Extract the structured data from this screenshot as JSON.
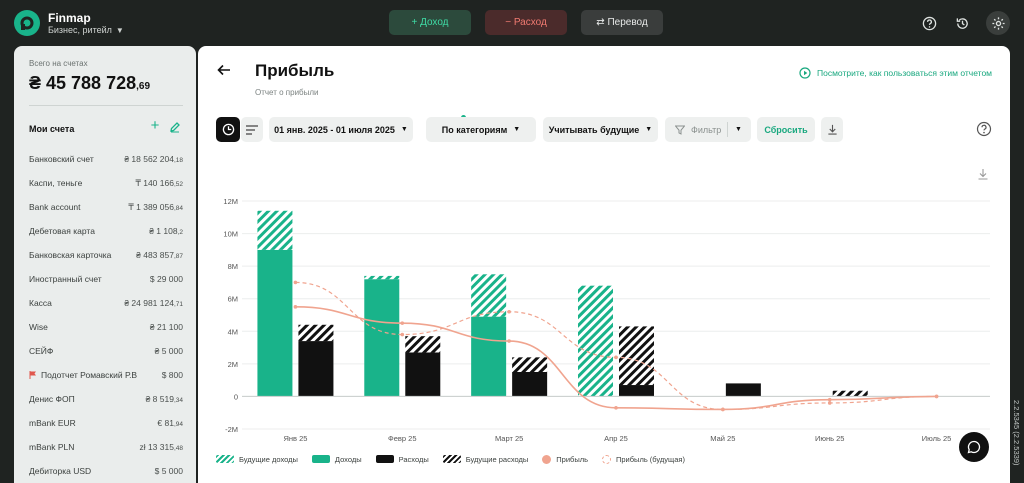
{
  "header": {
    "brand": "Finmap",
    "workspace": "Бизнес, ритейл",
    "income_label": "+ Доход",
    "expense_label": "− Расход",
    "transfer_label": "⇄ Перевод"
  },
  "sidebar": {
    "total_label": "Всего на счетах",
    "total_main": "₴ 45 788 728",
    "total_cents": ",69",
    "accounts_title": "Мои счета",
    "accounts": [
      {
        "name": "Банковский счет",
        "value": "₴ 18 562 204",
        "cents": ",18"
      },
      {
        "name": "Каспи, теньге",
        "value": "₸ 140 166",
        "cents": ",52"
      },
      {
        "name": "Bank account",
        "value": "₸ 1 389 056",
        "cents": ",84"
      },
      {
        "name": "Дебетовая карта",
        "value": "₴ 1 108",
        "cents": ",2"
      },
      {
        "name": "Банковская карточка",
        "value": "₴ 483 857",
        "cents": ",87"
      },
      {
        "name": "Иностранный счет",
        "value": "$ 29 000",
        "cents": ""
      },
      {
        "name": "Касса",
        "value": "₴ 24 981 124",
        "cents": ",71"
      },
      {
        "name": "Wise",
        "value": "₴ 21 100",
        "cents": ""
      },
      {
        "name": "СЕЙФ",
        "value": "₴ 5 000",
        "cents": ""
      },
      {
        "name": "Подотчет Ромавский Р.В",
        "value": "$ 800",
        "cents": "",
        "flag": true
      },
      {
        "name": "Денис ФОП",
        "value": "₴ 8 519",
        "cents": ",34"
      },
      {
        "name": "mBank EUR",
        "value": "€ 81",
        "cents": ",94"
      },
      {
        "name": "mBank PLN",
        "value": "zł 13 315",
        "cents": ",48"
      },
      {
        "name": "Дебиторка USD",
        "value": "$ 5 000",
        "cents": ""
      }
    ]
  },
  "report": {
    "title": "Прибыль",
    "subtitle": "Отчет о прибыли",
    "howto": "Посмотрите, как пользоваться этим отчетом",
    "period": "01 янв. 2025 - 01 июля 2025",
    "group": "По категориям",
    "future": "Учитывать будущие",
    "filter": "Фильтр",
    "reset": "Сбросить"
  },
  "chart_data": {
    "type": "bar",
    "categories": [
      "Янв 25",
      "Февр 25",
      "Март 25",
      "Апр 25",
      "Май 25",
      "Июнь 25",
      "Июль 25"
    ],
    "y_ticks": [
      "12M",
      "10M",
      "8M",
      "6M",
      "4M",
      "2M",
      "0",
      "-2M"
    ],
    "ylim": [
      -2,
      12
    ],
    "unit": "M",
    "series": [
      {
        "name": "Будущие доходы",
        "values": [
          2.4,
          0.2,
          2.6,
          6.8,
          0,
          0,
          0
        ]
      },
      {
        "name": "Доходы",
        "values": [
          9.0,
          7.2,
          4.9,
          0,
          0,
          0,
          0
        ]
      },
      {
        "name": "Расходы",
        "values": [
          3.4,
          2.7,
          1.5,
          0.7,
          0.8,
          0,
          0
        ]
      },
      {
        "name": "Будущие расходы",
        "values": [
          1.0,
          1.0,
          0.9,
          3.6,
          0,
          0.35,
          0
        ]
      },
      {
        "name": "Прибыль",
        "values": [
          5.5,
          4.5,
          3.4,
          -0.7,
          -0.8,
          -0.2,
          0
        ]
      },
      {
        "name": "Прибыль (будущая)",
        "values": [
          7.0,
          3.8,
          5.2,
          2.4,
          -0.8,
          -0.4,
          0
        ]
      }
    ],
    "legend_position": "bottom-left",
    "grid": true
  },
  "version": "2.2.5345 (2.2.5339)"
}
